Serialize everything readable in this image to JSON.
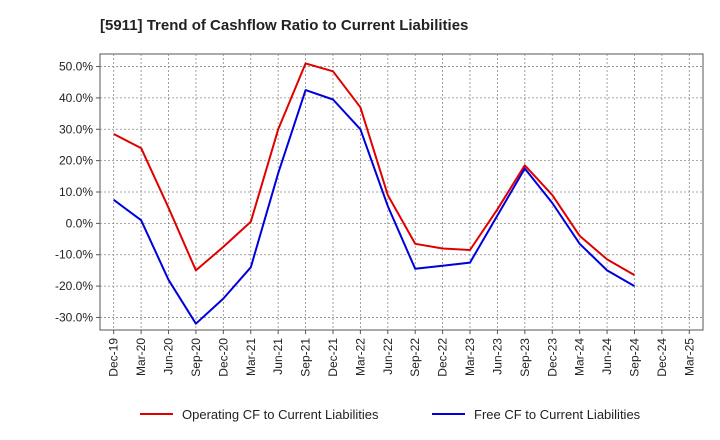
{
  "chart_data": {
    "type": "line",
    "title": "[5911]  Trend of Cashflow Ratio to Current Liabilities",
    "xlabel": "",
    "ylabel": "",
    "categories": [
      "Dec-19",
      "Mar-20",
      "Jun-20",
      "Sep-20",
      "Dec-20",
      "Mar-21",
      "Jun-21",
      "Sep-21",
      "Dec-21",
      "Mar-22",
      "Jun-22",
      "Sep-22",
      "Dec-22",
      "Mar-23",
      "Jun-23",
      "Sep-23",
      "Dec-23",
      "Mar-24",
      "Jun-24",
      "Sep-24",
      "Dec-24",
      "Mar-25"
    ],
    "y_ticks": [
      "50.0%",
      "40.0%",
      "30.0%",
      "20.0%",
      "10.0%",
      "0.0%",
      "-10.0%",
      "-20.0%",
      "-30.0%"
    ],
    "y_tick_values": [
      50,
      40,
      30,
      20,
      10,
      0,
      -10,
      -20,
      -30
    ],
    "ylim": [
      -34,
      54
    ],
    "grid": true,
    "legend_position": "bottom",
    "series": [
      {
        "name": "Operating CF to Current Liabilities",
        "color": "#e00000",
        "values": [
          28.5,
          24.0,
          5.0,
          -15.0,
          -7.5,
          0.5,
          30.0,
          51.0,
          48.5,
          37.0,
          9.0,
          -6.5,
          -8.0,
          -8.5,
          4.5,
          18.5,
          9.0,
          -4.0,
          -11.5,
          -16.5,
          null,
          null
        ]
      },
      {
        "name": "Free CF to Current Liabilities",
        "color": "#0000dd",
        "values": [
          7.5,
          1.0,
          -18.0,
          -32.0,
          -24.0,
          -14.0,
          16.0,
          42.5,
          39.5,
          30.0,
          5.5,
          -14.5,
          -13.5,
          -12.5,
          2.5,
          17.5,
          6.5,
          -6.5,
          -15.0,
          -20.0,
          null,
          null
        ]
      }
    ]
  }
}
